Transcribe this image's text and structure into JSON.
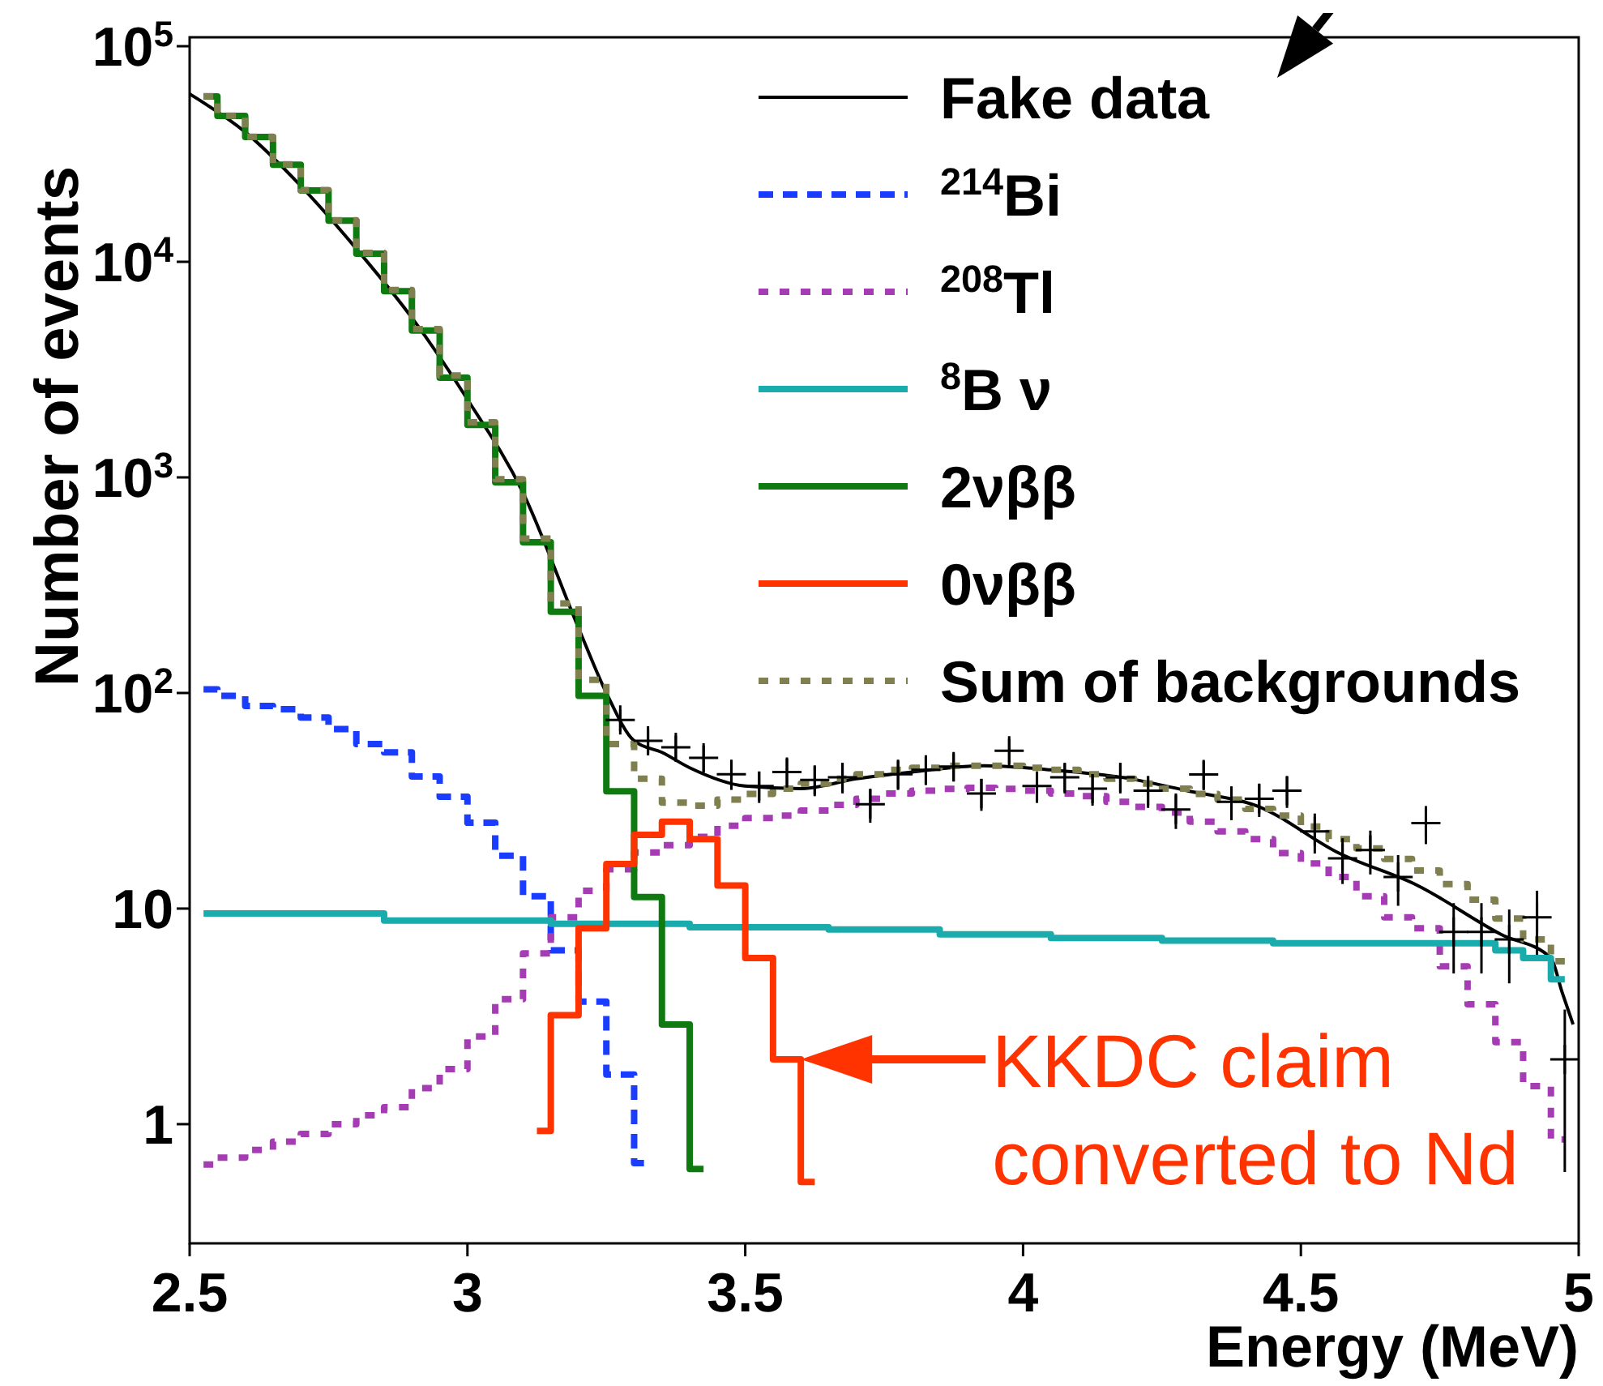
{
  "chart_data": {
    "type": "step",
    "xlabel": "Energy (MeV)",
    "ylabel": "Number of events",
    "log": "y",
    "legend": "top right",
    "xlim": [
      2.5,
      5
    ],
    "xticks": [
      2.5,
      3,
      3.5,
      4,
      4.5,
      5
    ],
    "ylim": [
      0.28,
      110000
    ],
    "yticks": [
      1,
      10,
      {
        "value": 100,
        "label": "10$^{2}$"
      },
      {
        "value": 1000,
        "label": "10$^{3}$"
      },
      {
        "value": 10000,
        "label": "10$^{4}$"
      },
      {
        "value": 100000,
        "label": "10$^{5}$"
      }
    ],
    "x": [
      2.525,
      2.575,
      2.625,
      2.675,
      2.725,
      2.775,
      2.825,
      2.875,
      2.925,
      2.975,
      3.025,
      3.075,
      3.125,
      3.175,
      3.225,
      3.275,
      3.325,
      3.375,
      3.425,
      3.475,
      3.525,
      3.575,
      3.625,
      3.675,
      3.725,
      3.775,
      3.825,
      3.875,
      3.925,
      3.975,
      4.025,
      4.075,
      4.125,
      4.175,
      4.225,
      4.275,
      4.325,
      4.375,
      4.425,
      4.475,
      4.525,
      4.575,
      4.625,
      4.675,
      4.725,
      4.775,
      4.825,
      4.875,
      4.925,
      4.975
    ],
    "series": [
      {
        "name": "Fake data",
        "type": "line",
        "color": "#000000",
        "line_style": "solid",
        "x": [
          2.5,
          2.6,
          2.7,
          2.8,
          2.9,
          3.0,
          3.1,
          3.2,
          3.25,
          3.3,
          3.35,
          3.4,
          3.5,
          3.6,
          3.7,
          3.8,
          3.93,
          4.05,
          4.18,
          4.3,
          4.42,
          4.57,
          4.71,
          4.86,
          4.95,
          4.97,
          4.99
        ],
        "values": [
          60000,
          40000,
          22500,
          11500,
          5500,
          2300,
          850,
          200,
          100,
          60,
          53,
          45,
          37,
          36,
          40,
          43,
          46,
          44,
          40.5,
          35,
          30,
          18,
          12.8,
          7.6,
          5.9,
          4.1,
          2.9
        ]
      },
      {
        "name": "$^{214}$Bi",
        "color": "#1a3cff",
        "line_style": "dashed",
        "values": [
          104,
          97,
          87,
          84,
          77,
          68,
          58,
          53,
          41,
          33,
          25,
          17.6,
          11.4,
          6.4,
          3.7,
          1.7,
          0.66,
          null,
          null,
          null,
          null,
          null,
          null,
          null,
          null,
          null,
          null,
          null,
          null,
          null,
          null,
          null,
          null,
          null,
          null,
          null,
          null,
          null,
          null,
          null,
          null,
          null,
          null,
          null,
          null,
          null,
          null,
          null,
          null,
          null
        ]
      },
      {
        "name": "$^{208}$Tl",
        "color": "#a63cb4",
        "line_style": "dotted",
        "values": [
          0.65,
          0.7,
          0.76,
          0.83,
          0.9,
          1.0,
          1.1,
          1.2,
          1.47,
          1.8,
          2.55,
          3.8,
          6.2,
          9.1,
          12.1,
          15.2,
          18.2,
          19.7,
          21.5,
          24.2,
          26.3,
          27,
          28.5,
          30.3,
          32.3,
          34.2,
          35.2,
          35.9,
          36.3,
          35.9,
          35.2,
          34.2,
          33.2,
          31.3,
          29.6,
          27.9,
          25.3,
          22.8,
          21,
          18.1,
          16.2,
          14,
          11.4,
          9.1,
          8.1,
          5.4,
          3.6,
          2.4,
          1.5,
          0.85
        ]
      },
      {
        "name": "$^{8}$B ν",
        "color": "#1aacac",
        "line_style": "solid",
        "values": [
          9.5,
          9.5,
          9.5,
          9.5,
          9.5,
          9.5,
          9.5,
          8.8,
          8.8,
          8.8,
          8.8,
          8.8,
          8.8,
          8.5,
          8.5,
          8.5,
          8.5,
          8.5,
          8.2,
          8.2,
          8.2,
          8.2,
          8.2,
          8.0,
          8.0,
          8.0,
          8.0,
          7.6,
          7.6,
          7.6,
          7.6,
          7.3,
          7.3,
          7.3,
          7.3,
          7.1,
          7.1,
          7.1,
          7.1,
          6.9,
          6.9,
          6.9,
          6.9,
          6.9,
          6.9,
          6.9,
          6.9,
          6.4,
          5.9,
          4.7
        ]
      },
      {
        "name": "2νββ",
        "color": "#0f7a0f",
        "line_style": "solid",
        "values": [
          58500,
          47500,
          37900,
          28200,
          21400,
          15500,
          10900,
          7300,
          4800,
          2900,
          1750,
          950,
          500,
          238,
          97,
          35,
          11.3,
          2.9,
          0.62,
          null,
          null,
          null,
          null,
          null,
          null,
          null,
          null,
          null,
          null,
          null,
          null,
          null,
          null,
          null,
          null,
          null,
          null,
          null,
          null,
          null,
          null,
          null,
          null,
          null,
          null,
          null,
          null,
          null,
          null,
          null
        ]
      },
      {
        "name": "0νββ",
        "color": "#ff3300",
        "line_style": "solid",
        "values": [
          null,
          null,
          null,
          null,
          null,
          null,
          null,
          null,
          null,
          null,
          null,
          null,
          0.93,
          3.2,
          8.1,
          16.1,
          22,
          25.3,
          21,
          12.8,
          5.9,
          2.0,
          0.54,
          null,
          null,
          null,
          null,
          null,
          null,
          null,
          null,
          null,
          null,
          null,
          null,
          null,
          null,
          null,
          null,
          null,
          null,
          null,
          null,
          null,
          null,
          null,
          null,
          null,
          null,
          null
        ]
      },
      {
        "name": "Sum of backgrounds",
        "color": "#7f7f4f",
        "line_style": "dotted",
        "values": [
          58600,
          47600,
          38000,
          28300,
          21500,
          15600,
          11000,
          7400,
          4870,
          2970,
          1800,
          980,
          520,
          260,
          115,
          58,
          40,
          31,
          30,
          32,
          34,
          36,
          38,
          40,
          42,
          44,
          45,
          46,
          46,
          46,
          45,
          44,
          42,
          40,
          38,
          36,
          34,
          32,
          29,
          27,
          24,
          21,
          19,
          17,
          15,
          13,
          11,
          9,
          7.2,
          5.7
        ]
      },
      {
        "type": "scatter",
        "color": "#000000",
        "marker": "cross",
        "x": [
          3.275,
          3.325,
          3.375,
          3.425,
          3.475,
          3.525,
          3.575,
          3.625,
          3.675,
          3.725,
          3.775,
          3.825,
          3.875,
          3.925,
          3.975,
          4.025,
          4.075,
          4.125,
          4.175,
          4.225,
          4.275,
          4.325,
          4.375,
          4.425,
          4.475,
          4.525,
          4.575,
          4.625,
          4.675,
          4.725,
          4.775,
          4.825,
          4.875,
          4.925,
          4.975
        ],
        "values": [
          75,
          60,
          56,
          50,
          42,
          37,
          43,
          39.5,
          40.6,
          30.5,
          42,
          44,
          45.6,
          34.2,
          54,
          37,
          40.6,
          36,
          40.6,
          35.2,
          28.8,
          41.9,
          31.3,
          32.3,
          35.2,
          22.8,
          17.1,
          18.7,
          14,
          24.9,
          7.8,
          7.8,
          7.2,
          9.1,
          2.0
        ],
        "errors": [
          8.7,
          7.7,
          7.5,
          7.1,
          6.5,
          6.1,
          6.6,
          6.3,
          6.4,
          5.5,
          6.5,
          6.6,
          6.8,
          5.8,
          7.3,
          6.1,
          6.4,
          6,
          6.4,
          5.9,
          5.4,
          6.5,
          5.6,
          5.7,
          5.9,
          4.8,
          4.1,
          4.3,
          3.7,
          5,
          2.8,
          2.8,
          2.7,
          3,
          1.4
        ]
      }
    ],
    "annotations": [
      {
        "text": "KKDC claim\nconverted to Nd",
        "x": 3.6,
        "y": 2.0
      }
    ]
  }
}
